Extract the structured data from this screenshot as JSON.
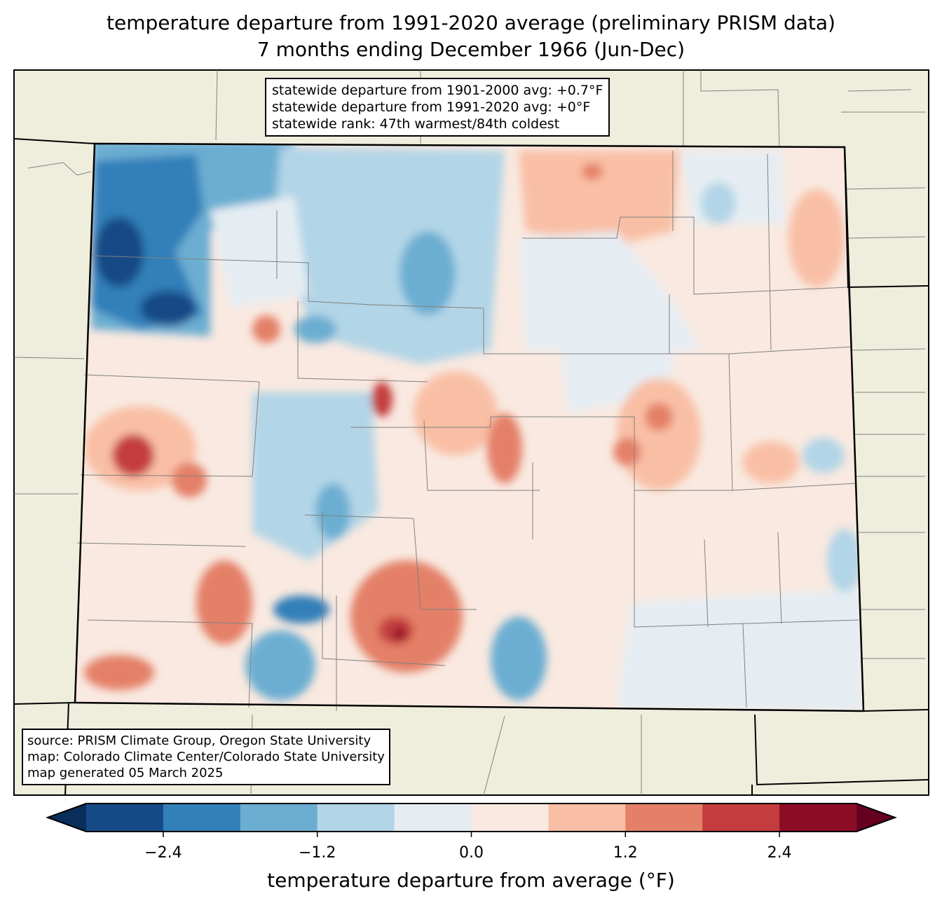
{
  "title": {
    "line1": "temperature departure from 1991-2020 average (preliminary PRISM data)",
    "line2": "7 months ending December 1966 (Jun-Dec)"
  },
  "stats_box": [
    "statewide departure from 1901-2000 avg: +0.7°F",
    "statewide departure from 1991-2020 avg: +0°F",
    "statewide rank: 47th warmest/84th coldest"
  ],
  "source_box": [
    "source: PRISM Climate Group, Oregon State University",
    "map: Colorado Climate Center/Colorado State University",
    "map generated 05 March 2025"
  ],
  "colorbar": {
    "label": "temperature departure from average (°F)",
    "levels": [
      -3.0,
      -2.4,
      -1.8,
      -1.2,
      -0.6,
      0.0,
      0.6,
      1.2,
      1.8,
      2.4,
      3.0
    ],
    "colors": [
      "#154a86",
      "#337fb9",
      "#6caed2",
      "#b2d5e7",
      "#e5edf3",
      "#f9e9e0",
      "#f9bfa5",
      "#e48068",
      "#c43c3d",
      "#8a0c25"
    ],
    "under_color": "#0a2e5c",
    "over_color": "#660020",
    "ticks": [
      "−2.4",
      "−1.2",
      "0.0",
      "1.2",
      "2.4"
    ],
    "tick_values": [
      -2.4,
      -1.2,
      0.0,
      1.2,
      2.4
    ]
  },
  "colors": {
    "land": "#efeedd",
    "state_border": "#000000",
    "county_border": "#808080"
  }
}
